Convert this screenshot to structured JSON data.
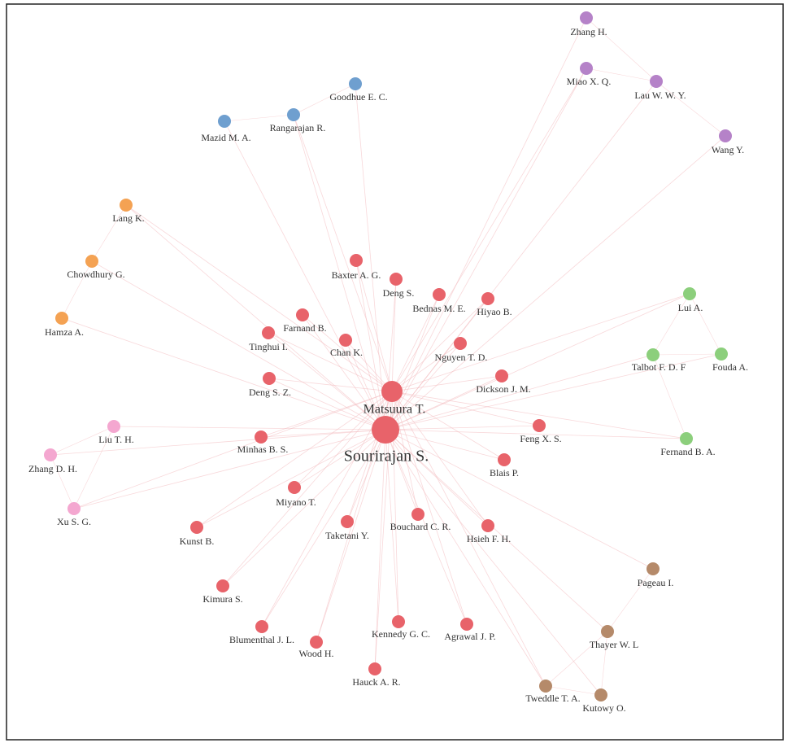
{
  "nodes": [
    {
      "label": "Sourirajan S.",
      "color": "#e8636a"
    },
    {
      "label": "Matsuura T.",
      "color": "#e8636a"
    },
    {
      "label": "Baxter A. G.",
      "color": "#e8636a"
    },
    {
      "label": "Deng S.",
      "color": "#e8636a"
    },
    {
      "label": "Bednas M. E.",
      "color": "#e8636a"
    },
    {
      "label": "Hiyao B.",
      "color": "#e8636a"
    },
    {
      "label": "Farnand B.",
      "color": "#e8636a"
    },
    {
      "label": "Tinghui I.",
      "color": "#e8636a"
    },
    {
      "label": "Chan K.",
      "color": "#e8636a"
    },
    {
      "label": "Nguyen T. D.",
      "color": "#e8636a"
    },
    {
      "label": "Dickson J. M.",
      "color": "#e8636a"
    },
    {
      "label": "Deng S. Z.",
      "color": "#e8636a"
    },
    {
      "label": "Feng X. S.",
      "color": "#e8636a"
    },
    {
      "label": "Minhas B. S.",
      "color": "#e8636a"
    },
    {
      "label": "Blais P.",
      "color": "#e8636a"
    },
    {
      "label": "Miyano T.",
      "color": "#e8636a"
    },
    {
      "label": "Bouchard C. R.",
      "color": "#e8636a"
    },
    {
      "label": "Taketani Y.",
      "color": "#e8636a"
    },
    {
      "label": "Hsieh F. H.",
      "color": "#e8636a"
    },
    {
      "label": "Kunst B.",
      "color": "#e8636a"
    },
    {
      "label": "Kimura S.",
      "color": "#e8636a"
    },
    {
      "label": "Blumenthal J. L.",
      "color": "#e8636a"
    },
    {
      "label": "Kennedy G. C.",
      "color": "#e8636a"
    },
    {
      "label": "Agrawal J. P.",
      "color": "#e8636a"
    },
    {
      "label": "Wood H.",
      "color": "#e8636a"
    },
    {
      "label": "Hauck A. R.",
      "color": "#e8636a"
    },
    {
      "label": "Goodhue E. C.",
      "color": "#6f9fcf"
    },
    {
      "label": "Rangarajan R.",
      "color": "#6f9fcf"
    },
    {
      "label": "Mazid M. A.",
      "color": "#6f9fcf"
    },
    {
      "label": "Zhang H.",
      "color": "#b582c8"
    },
    {
      "label": "Miao X. Q.",
      "color": "#b582c8"
    },
    {
      "label": "Lau W. W. Y.",
      "color": "#b582c8"
    },
    {
      "label": "Wang Y.",
      "color": "#b582c8"
    },
    {
      "label": "Lang K.",
      "color": "#f4a253"
    },
    {
      "label": "Chowdhury G.",
      "color": "#f4a253"
    },
    {
      "label": "Hamza A.",
      "color": "#f4a253"
    },
    {
      "label": "Lui A.",
      "color": "#8ccf7c"
    },
    {
      "label": "Talbot F. D. F",
      "color": "#8ccf7c"
    },
    {
      "label": "Fouda A.",
      "color": "#8ccf7c"
    },
    {
      "label": "Fernand B. A.",
      "color": "#8ccf7c"
    },
    {
      "label": "Liu T. H.",
      "color": "#f4a7d0"
    },
    {
      "label": "Zhang D. H.",
      "color": "#f4a7d0"
    },
    {
      "label": "Xu S. G.",
      "color": "#f4a7d0"
    },
    {
      "label": "Pageau I.",
      "color": "#b58a6a"
    },
    {
      "label": "Thayer W. L",
      "color": "#b58a6a"
    },
    {
      "label": "Tweddle T. A.",
      "color": "#b58a6a"
    },
    {
      "label": "Kutowy O.",
      "color": "#b58a6a"
    }
  ]
}
